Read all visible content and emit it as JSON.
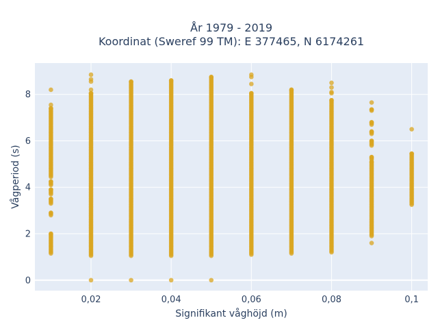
{
  "chart_data": {
    "type": "scatter",
    "title": "År 1979 - 2019",
    "subtitle": "Koordinat (Sweref 99 TM): E 377465, N 6174261",
    "xlabel": "Signifikant våghöjd (m)",
    "ylabel": "Vågperiod (s)",
    "xlim": [
      0.006,
      0.104
    ],
    "ylim": [
      -0.45,
      9.35
    ],
    "x_ticks": [
      0.02,
      0.04,
      0.06,
      0.08,
      0.1
    ],
    "x_tick_labels": [
      "0,02",
      "0,04",
      "0,06",
      "0,08",
      "0,1"
    ],
    "y_ticks": [
      0,
      2,
      4,
      6,
      8
    ],
    "y_tick_labels": [
      "0",
      "2",
      "4",
      "6",
      "8"
    ],
    "grid": true,
    "legend": "none",
    "colors": {
      "marker": "#DAA520",
      "plot_background": "#E5ECF6",
      "grid": "#ffffff",
      "text": "#2a3f5f"
    },
    "series": [
      {
        "color": "#DAA520",
        "columns": [
          {
            "x": 0.01,
            "ranges": [
              [
                1.15,
                2.0
              ],
              [
                2.8,
                2.9
              ],
              [
                3.3,
                3.5
              ],
              [
                3.7,
                3.9
              ],
              [
                4.1,
                4.25
              ],
              [
                4.45,
                7.4
              ]
            ],
            "points": [
              8.2,
              7.55
            ]
          },
          {
            "x": 0.02,
            "ranges": [
              [
                1.05,
                8.05
              ]
            ],
            "points": [
              0.0,
              8.2,
              8.55,
              8.65,
              8.85
            ]
          },
          {
            "x": 0.03,
            "ranges": [
              [
                1.05,
                8.55
              ]
            ],
            "points": [
              0.0
            ]
          },
          {
            "x": 0.04,
            "ranges": [
              [
                1.05,
                8.6
              ]
            ],
            "points": [
              0.0
            ]
          },
          {
            "x": 0.05,
            "ranges": [
              [
                1.05,
                8.75
              ]
            ],
            "points": [
              0.0
            ]
          },
          {
            "x": 0.06,
            "ranges": [
              [
                1.1,
                8.05
              ]
            ],
            "points": [
              8.45,
              8.75,
              8.85
            ]
          },
          {
            "x": 0.07,
            "ranges": [
              [
                1.15,
                8.2
              ]
            ],
            "points": []
          },
          {
            "x": 0.08,
            "ranges": [
              [
                1.2,
                7.75
              ]
            ],
            "points": [
              8.05,
              8.1,
              8.3,
              8.5
            ]
          },
          {
            "x": 0.09,
            "ranges": [
              [
                1.9,
                5.1
              ],
              [
                5.2,
                5.3
              ],
              [
                5.8,
                6.0
              ],
              [
                6.3,
                6.4
              ],
              [
                6.7,
                6.8
              ],
              [
                7.3,
                7.35
              ]
            ],
            "points": [
              1.6,
              7.65
            ]
          },
          {
            "x": 0.1,
            "ranges": [
              [
                3.25,
                5.45
              ]
            ],
            "points": [
              6.5
            ]
          }
        ]
      }
    ]
  }
}
